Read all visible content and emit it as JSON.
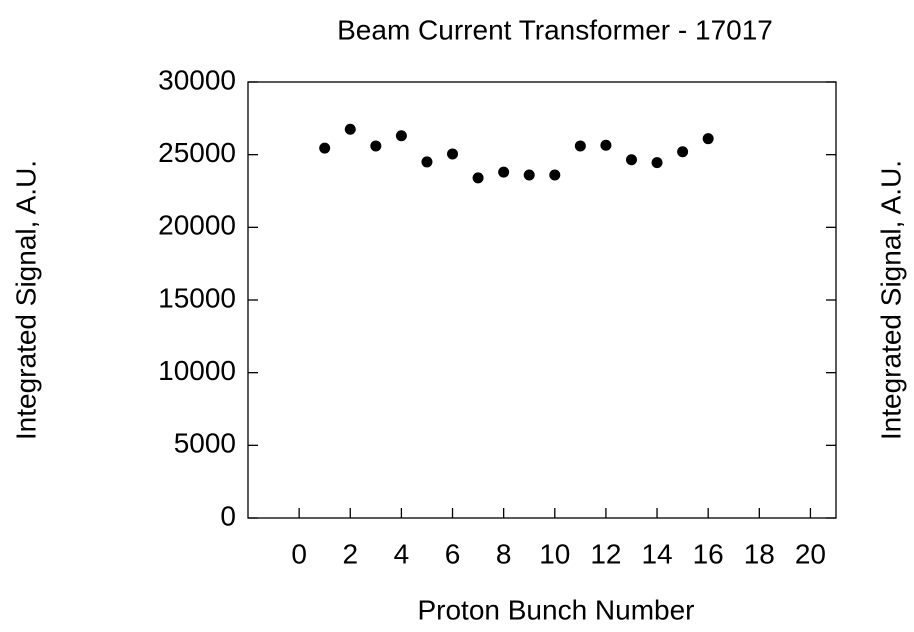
{
  "chart_data": {
    "type": "scatter",
    "title": "Beam Current Transformer - 17017",
    "xlabel": "Proton Bunch Number",
    "ylabel": "Integrated Signal, A.U.",
    "y2label": "Integrated Signal, A.U.",
    "x": [
      1,
      2,
      3,
      4,
      5,
      6,
      7,
      8,
      9,
      10,
      11,
      12,
      13,
      14,
      15,
      16
    ],
    "values": [
      25450,
      26750,
      25600,
      26300,
      24500,
      25050,
      23400,
      23800,
      23600,
      23600,
      25600,
      25650,
      24650,
      24450,
      25200,
      26100
    ],
    "color": "#000000",
    "xlim": [
      -2,
      21
    ],
    "xticks": [
      0,
      2,
      4,
      6,
      8,
      10,
      12,
      14,
      16,
      18,
      20
    ],
    "ylim": [
      0,
      30000
    ],
    "yticks": [
      0,
      5000,
      10000,
      15000,
      20000,
      25000,
      30000
    ]
  }
}
